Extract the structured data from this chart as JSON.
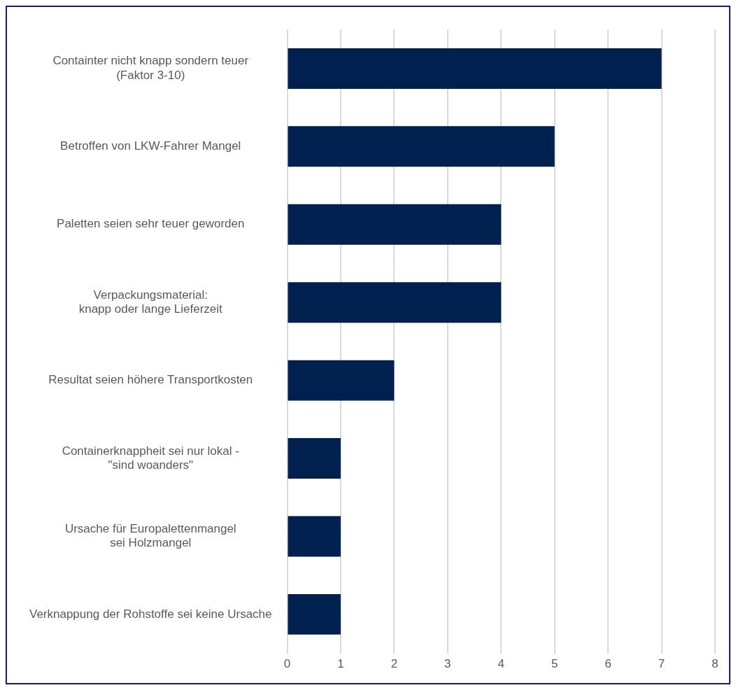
{
  "chart_data": {
    "type": "bar",
    "orientation": "horizontal",
    "categories": [
      "Containter nicht knapp sondern teuer\n(Faktor 3-10)",
      "Betroffen von LKW-Fahrer Mangel",
      "Paletten seien sehr teuer geworden",
      "Verpackungsmaterial:\nknapp oder lange Lieferzeit",
      "Resultat seien höhere Transportkosten",
      "Containerknappheit sei nur lokal -\n\"sind woanders\"",
      "Ursache für Europalettenmangel\nsei Holzmangel",
      "Verknappung der Rohstoffe sei keine Ursache"
    ],
    "values": [
      7,
      5,
      4,
      4,
      2,
      1,
      1,
      1
    ],
    "color": "#002050",
    "xlim": [
      0,
      8
    ],
    "xticks": [
      0,
      1,
      2,
      3,
      4,
      5,
      6,
      7,
      8
    ],
    "grid": "x",
    "legend": false
  }
}
